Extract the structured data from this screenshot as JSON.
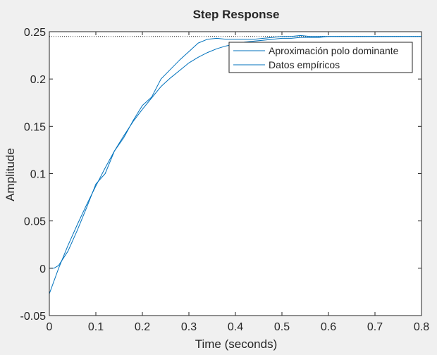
{
  "chart_data": {
    "type": "line",
    "title": "Step Response",
    "xlabel": "Time (seconds)",
    "ylabel": "Amplitude",
    "xlim": [
      0,
      0.8
    ],
    "ylim": [
      -0.05,
      0.25
    ],
    "x_ticks": [
      0,
      0.1,
      0.2,
      0.3,
      0.4,
      0.5,
      0.6,
      0.7,
      0.8
    ],
    "x_tick_labels": [
      "0",
      "0.1",
      "0.2",
      "0.3",
      "0.4",
      "0.5",
      "0.6",
      "0.7",
      "0.8"
    ],
    "y_ticks": [
      -0.05,
      0,
      0.05,
      0.1,
      0.15,
      0.2,
      0.25
    ],
    "y_tick_labels": [
      "-0.05",
      "0",
      "0.05",
      "0.1",
      "0.15",
      "0.2",
      "0.25"
    ],
    "grid": false,
    "legend_position": "top-right",
    "steady_state_value": 0.245,
    "series": [
      {
        "name": "Aproximación polo dominante",
        "color": "#0072bd",
        "x": [
          0,
          0.02,
          0.04,
          0.06,
          0.08,
          0.1,
          0.12,
          0.14,
          0.16,
          0.18,
          0.2,
          0.22,
          0.24,
          0.26,
          0.28,
          0.3,
          0.32,
          0.34,
          0.36,
          0.38,
          0.4,
          0.42,
          0.44,
          0.46,
          0.48,
          0.5,
          0.52,
          0.54,
          0.56,
          0.58,
          0.6,
          0.65,
          0.7,
          0.75,
          0.8
        ],
        "y": [
          -0.027,
          0.0,
          0.024,
          0.046,
          0.067,
          0.087,
          0.106,
          0.124,
          0.14,
          0.155,
          0.168,
          0.18,
          0.192,
          0.201,
          0.209,
          0.217,
          0.223,
          0.228,
          0.232,
          0.235,
          0.237,
          0.239,
          0.24,
          0.241,
          0.242,
          0.243,
          0.243,
          0.244,
          0.244,
          0.244,
          0.245,
          0.245,
          0.245,
          0.245,
          0.245
        ]
      },
      {
        "name": "Datos empíricos",
        "color": "#0072bd",
        "x": [
          0,
          0.01,
          0.02,
          0.04,
          0.06,
          0.08,
          0.1,
          0.12,
          0.14,
          0.16,
          0.18,
          0.2,
          0.22,
          0.24,
          0.26,
          0.28,
          0.3,
          0.32,
          0.34,
          0.36,
          0.38,
          0.4,
          0.42,
          0.44,
          0.46,
          0.48,
          0.5,
          0.52,
          0.54,
          0.56,
          0.58,
          0.6,
          0.65,
          0.7,
          0.75,
          0.8
        ],
        "y": [
          0.0,
          0.0,
          0.003,
          0.018,
          0.04,
          0.064,
          0.089,
          0.1,
          0.124,
          0.138,
          0.156,
          0.172,
          0.181,
          0.2,
          0.21,
          0.22,
          0.229,
          0.238,
          0.242,
          0.243,
          0.242,
          0.242,
          0.242,
          0.242,
          0.243,
          0.244,
          0.245,
          0.245,
          0.246,
          0.245,
          0.245,
          0.245,
          0.245,
          0.245,
          0.245,
          0.245
        ]
      }
    ]
  }
}
